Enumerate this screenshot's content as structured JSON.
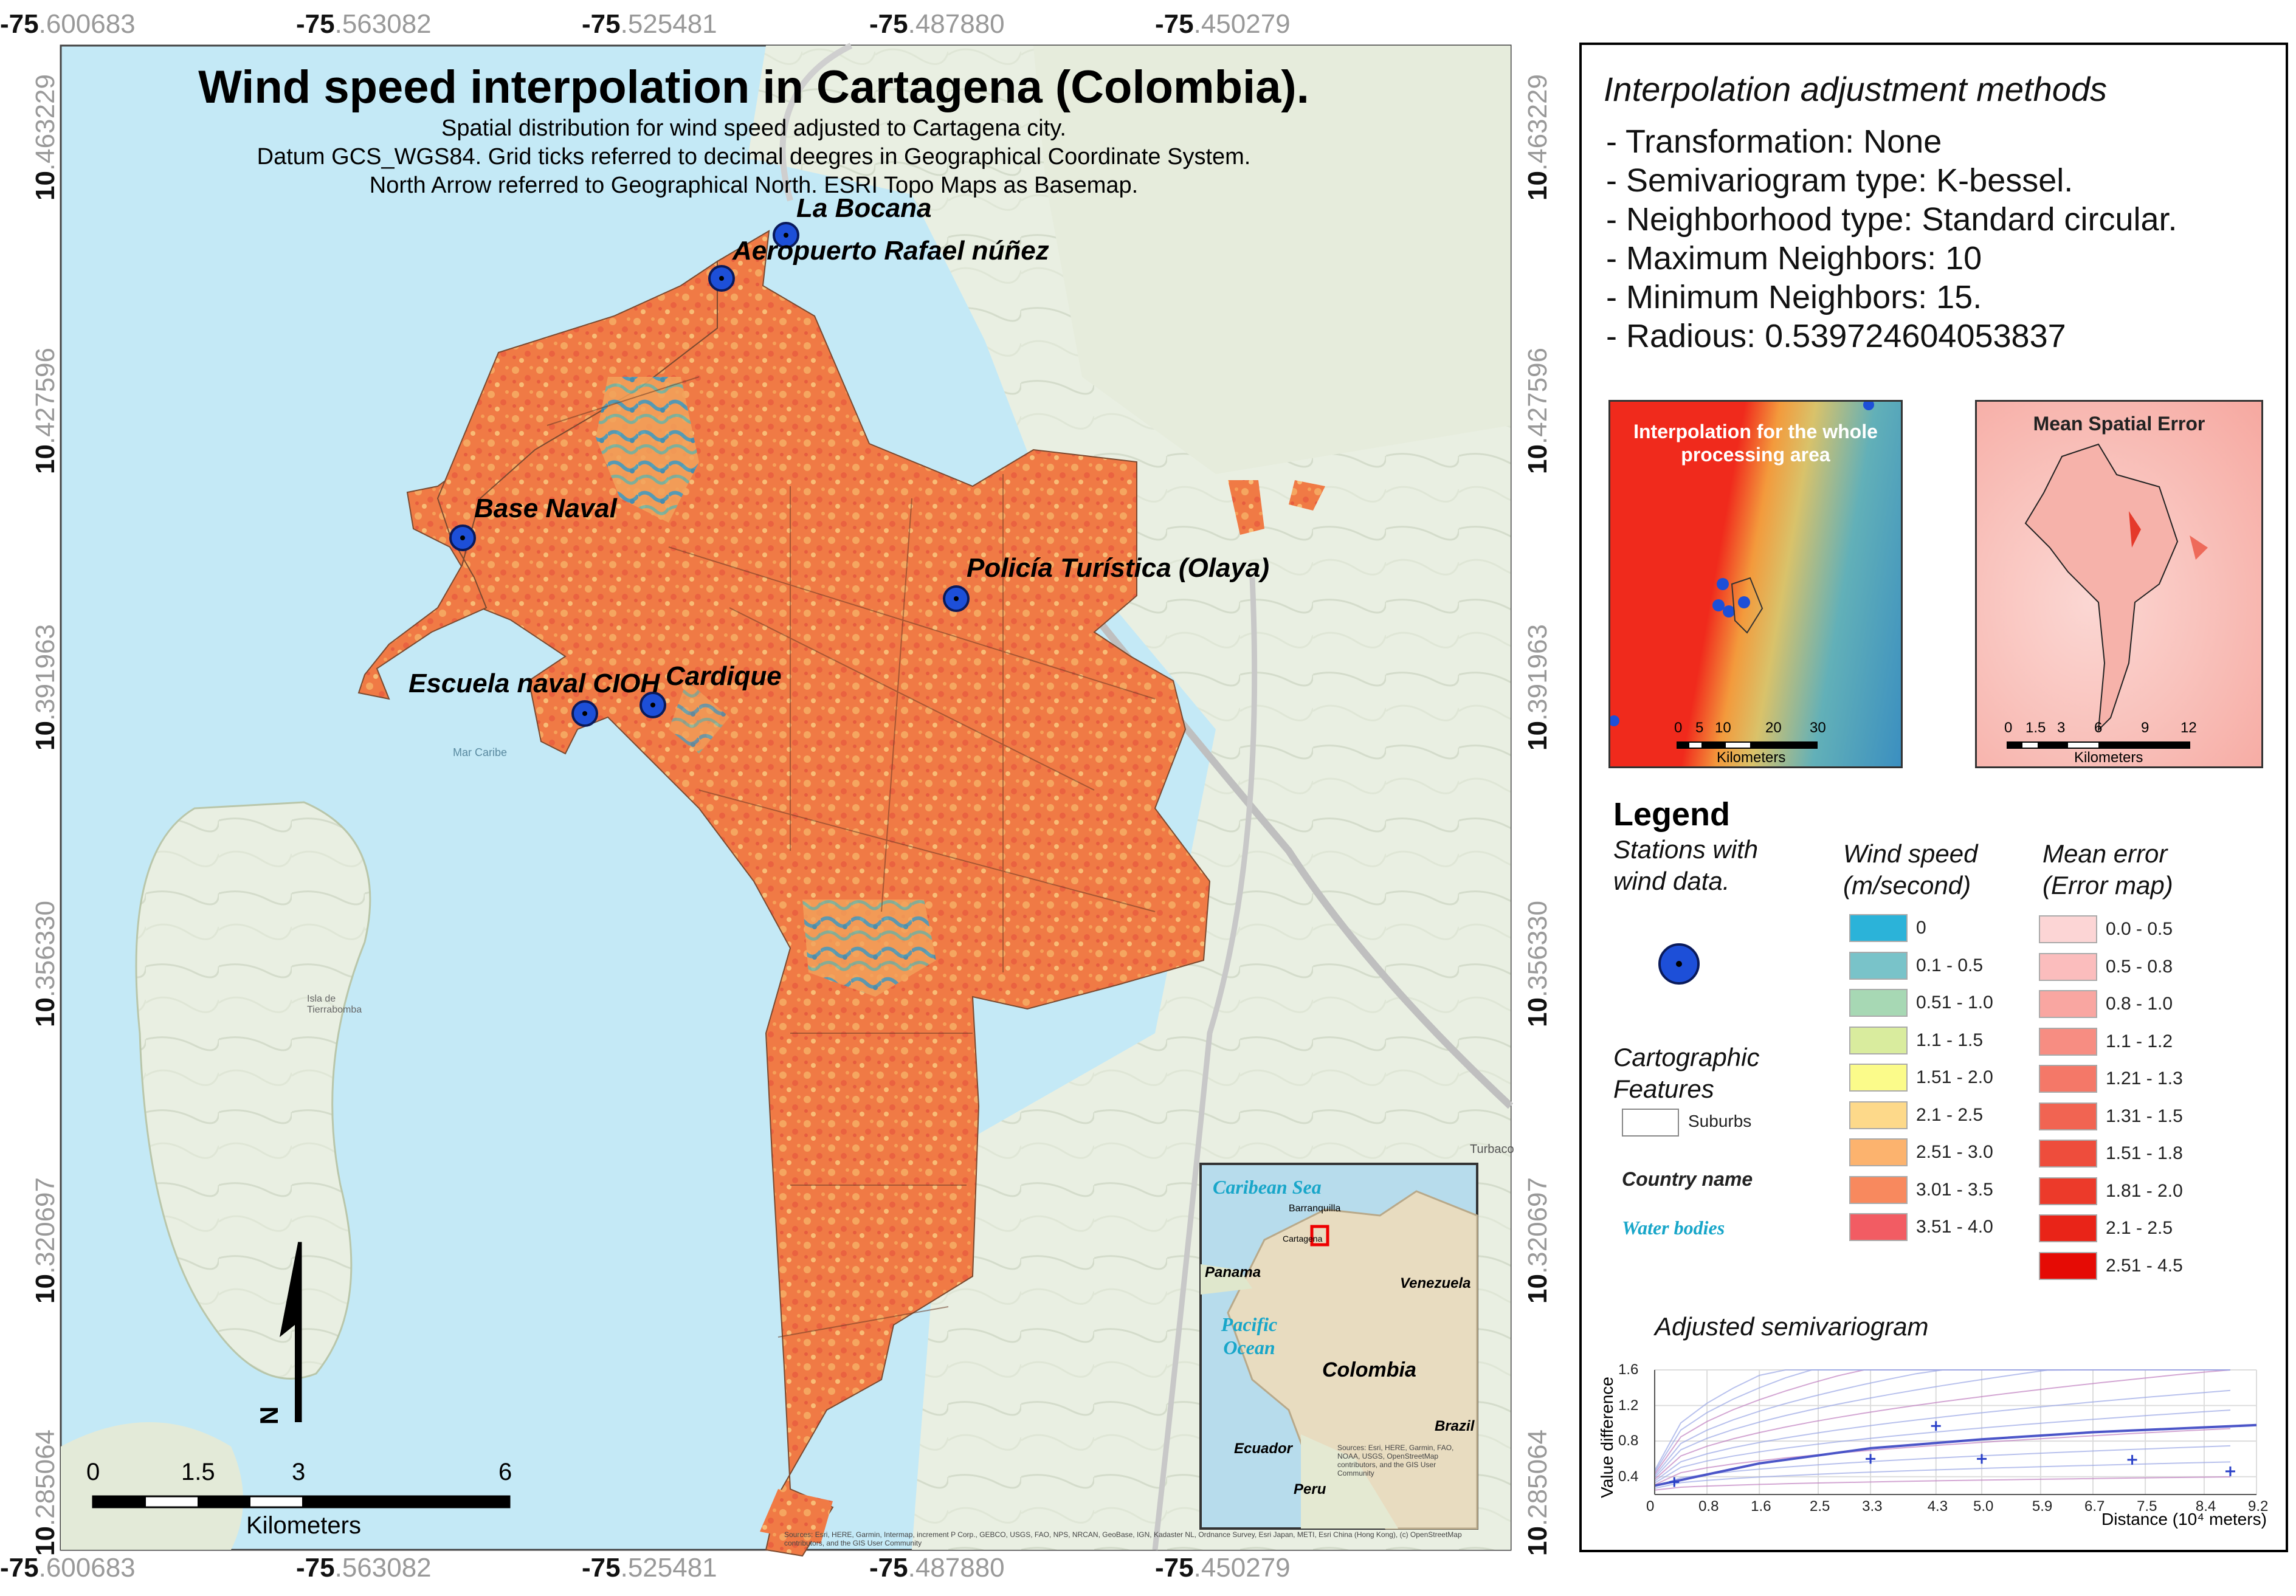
{
  "map": {
    "title": "Wind speed interpolation in Cartagena (Colombia).",
    "subtitle_lines": [
      "Spatial distribution for wind speed adjusted to Cartagena city.",
      "Datum GCS_WGS84. Grid ticks referred to decimal deegres in Geographical Coordinate System.",
      "North Arrow referred to Geographical North. ESRI Topo Maps as Basemap."
    ],
    "lon_ticks": [
      {
        "bold": "-75",
        "rest": ".600683"
      },
      {
        "bold": "-75",
        "rest": ".563082"
      },
      {
        "bold": "-75",
        "rest": ".525481"
      },
      {
        "bold": "-75",
        "rest": ".487880"
      },
      {
        "bold": "-75",
        "rest": ".450279"
      }
    ],
    "lat_ticks": [
      {
        "bold": "10",
        "rest": ".463229"
      },
      {
        "bold": "10",
        "rest": ".427596"
      },
      {
        "bold": "10",
        "rest": ".391963"
      },
      {
        "bold": "10",
        "rest": ".356330"
      },
      {
        "bold": "10",
        "rest": ".320697"
      },
      {
        "bold": "10",
        "rest": ".285064"
      }
    ],
    "stations": [
      {
        "name": "La Bocana"
      },
      {
        "name": "Aeropuerto Rafael núñez"
      },
      {
        "name": "Base Naval"
      },
      {
        "name": "Policía Turística (Olaya)"
      },
      {
        "name": "Escuela naval CIOH"
      },
      {
        "name": "Cardique"
      }
    ],
    "basemap_labels": {
      "sea": "Mar Caribe",
      "island": "Isla de Tierrabomba",
      "turbaco": "Turbaco"
    },
    "north_letter": "N",
    "scale": {
      "ticks": [
        "0",
        "1.5",
        "3",
        "6"
      ],
      "unit": "Kilometers"
    },
    "inset": {
      "caribbean": "Caribean Sea",
      "pacific": "Pacific Ocean",
      "countries": [
        "Panama",
        "Venezuela",
        "Colombia",
        "Ecuador",
        "Peru",
        "Brazil"
      ],
      "cities": [
        "Barranquilla",
        "Cartagena"
      ],
      "attribution": "Sources: Esri, HERE, Garmin, FAO, NOAA, USGS, OpenStreetMap contributors, and the GIS User Community"
    },
    "attribution": "Sources: Esri, HERE, Garmin, Intermap, increment P Corp., GEBCO, USGS, FAO, NPS, NRCAN, GeoBase, IGN, Kadaster NL, Ordnance Survey, Esri Japan, METI, Esri China (Hong Kong), (c) OpenStreetMap contributors, and the GIS User Community"
  },
  "panel": {
    "title": "Interpolation adjustment methods",
    "methods": [
      "- Transformation: None",
      "- Semivariogram type: K-bessel.",
      "- Neighborhood type: Standard circular.",
      "- Maximum Neighbors: 10",
      "- Minimum Neighbors: 15.",
      "- Radious: 0.539724604053837"
    ],
    "thumb1": {
      "title": "Interpolation for the whole processing area",
      "scale_ticks": [
        "0",
        "5",
        "10",
        "20",
        "30"
      ],
      "unit": "Kilometers"
    },
    "thumb2": {
      "title": "Mean Spatial Error",
      "scale_ticks": [
        "0",
        "1.5",
        "3",
        "6",
        "9",
        "12"
      ],
      "unit": "Kilometers"
    },
    "legend": {
      "title": "Legend",
      "stations_head": "Stations with wind data.",
      "wind_head": "Wind speed (m/second)",
      "error_head": "Mean error (Error map)",
      "wind_classes": [
        {
          "label": "0",
          "color": "#2bb3d9"
        },
        {
          "label": "0.1 - 0.5",
          "color": "#79c3c9"
        },
        {
          "label": "0.51 - 1.0",
          "color": "#a7d8b4"
        },
        {
          "label": "1.1 - 1.5",
          "color": "#d9ec9e"
        },
        {
          "label": "1.51 - 2.0",
          "color": "#fbfb8a"
        },
        {
          "label": "2.1 - 2.5",
          "color": "#fdd98a"
        },
        {
          "label": "2.51 - 3.0",
          "color": "#fcb36e"
        },
        {
          "label": "3.01 - 3.5",
          "color": "#f8895e"
        },
        {
          "label": "3.51 - 4.0",
          "color": "#f25c63"
        }
      ],
      "error_classes": [
        {
          "label": "0.0 - 0.5",
          "color": "#fcd5d5"
        },
        {
          "label": "0.5 - 0.8",
          "color": "#fbbdbd"
        },
        {
          "label": "0.8 - 1.0",
          "color": "#f9a6a1"
        },
        {
          "label": "1.1 - 1.2",
          "color": "#f78d82"
        },
        {
          "label": "1.21 - 1.3",
          "color": "#f47868"
        },
        {
          "label": "1.31 - 1.5",
          "color": "#f16452"
        },
        {
          "label": "1.51 - 1.8",
          "color": "#ee4d3c"
        },
        {
          "label": "1.81 - 2.0",
          "color": "#ec3a2a"
        },
        {
          "label": "2.1 - 2.5",
          "color": "#e92418"
        },
        {
          "label": "2.51 - 4.5",
          "color": "#e50b05"
        }
      ],
      "carto_head": "Cartographic Features",
      "suburbs": "Suburbs",
      "country_name": "Country name",
      "water_bodies": "Water bodies"
    },
    "semivariogram": {
      "title": "Adjusted semivariogram",
      "ylabel": "Value difference",
      "xlabel": "Distance (10⁴ meters)",
      "y_ticks": [
        "0.4",
        "0.8",
        "1.2",
        "1.6"
      ],
      "x_ticks": [
        "0",
        "0.8",
        "1.6",
        "2.5",
        "3.3",
        "4.3",
        "5.0",
        "5.9",
        "6.7",
        "7.5",
        "8.4",
        "9.2"
      ]
    }
  },
  "chart_data": {
    "type": "scatter",
    "title": "Adjusted semivariogram",
    "xlabel": "Distance (10⁴ meters)",
    "ylabel": "Value difference",
    "xlim": [
      0,
      9.2
    ],
    "ylim": [
      0.2,
      1.6
    ],
    "points": [
      {
        "x": 0.3,
        "y": 0.34
      },
      {
        "x": 4.3,
        "y": 0.97
      },
      {
        "x": 3.3,
        "y": 0.6
      },
      {
        "x": 5.0,
        "y": 0.6
      },
      {
        "x": 7.3,
        "y": 0.59
      },
      {
        "x": 8.8,
        "y": 0.46
      }
    ],
    "model_line": [
      {
        "x": 0,
        "y": 0.3
      },
      {
        "x": 1.6,
        "y": 0.55
      },
      {
        "x": 3.3,
        "y": 0.72
      },
      {
        "x": 5.0,
        "y": 0.82
      },
      {
        "x": 6.7,
        "y": 0.9
      },
      {
        "x": 9.2,
        "y": 0.98
      }
    ]
  }
}
